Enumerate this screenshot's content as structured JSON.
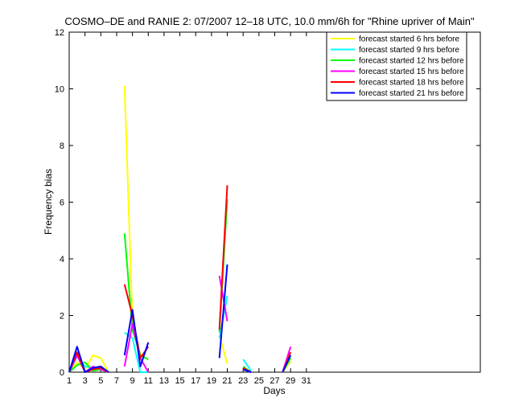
{
  "chart_data": {
    "type": "line",
    "title": "COSMO–DE and RANIE 2: 07/2007 12–18 UTC, 10.0 mm/6h for \"Rhine upriver of Main\"",
    "xlabel": "Days",
    "ylabel": "Frequency bias",
    "xlim": [
      1,
      53
    ],
    "ylim": [
      0,
      12
    ],
    "x_ticks": [
      1,
      3,
      5,
      7,
      9,
      11,
      13,
      15,
      17,
      19,
      21,
      23,
      25,
      27,
      29,
      31
    ],
    "y_ticks": [
      0,
      2,
      4,
      6,
      8,
      10,
      12
    ],
    "legend_position": "top-right",
    "series": [
      {
        "name": "forecast started 6 hrs before",
        "color": "#ffff00",
        "segments": [
          [
            [
              1,
              0
            ],
            [
              2,
              0.35
            ],
            [
              3,
              0.1
            ],
            [
              4,
              0.6
            ],
            [
              5,
              0.5
            ],
            [
              6,
              0
            ]
          ],
          [
            [
              8,
              10.1
            ],
            [
              9,
              1.9
            ],
            [
              10,
              0.6
            ]
          ],
          [
            [
              20,
              1.3
            ],
            [
              21,
              0.3
            ]
          ],
          [
            [
              23,
              0.1
            ],
            [
              24,
              0
            ]
          ],
          [
            [
              28,
              0
            ],
            [
              29,
              0.4
            ]
          ]
        ]
      },
      {
        "name": "forecast started 9 hrs before",
        "color": "#00ffff",
        "segments": [
          [
            [
              1,
              0
            ],
            [
              2,
              0.55
            ],
            [
              3,
              0.2
            ],
            [
              4,
              0.15
            ],
            [
              5,
              0.2
            ],
            [
              6,
              0
            ]
          ],
          [
            [
              8,
              1.4
            ],
            [
              9,
              1.2
            ],
            [
              10,
              0
            ],
            [
              11,
              0
            ]
          ],
          [
            [
              20,
              1.2
            ],
            [
              21,
              2.7
            ]
          ],
          [
            [
              23,
              0.45
            ],
            [
              24,
              0.05
            ]
          ],
          [
            [
              28,
              0
            ],
            [
              29,
              0.6
            ]
          ]
        ]
      },
      {
        "name": "forecast started 12 hrs before",
        "color": "#00ff00",
        "segments": [
          [
            [
              1,
              0
            ],
            [
              2,
              0.25
            ],
            [
              3,
              0.35
            ],
            [
              4,
              0.05
            ],
            [
              5,
              0.1
            ],
            [
              6,
              0
            ]
          ],
          [
            [
              8,
              4.9
            ],
            [
              9,
              1.5
            ],
            [
              10,
              0.6
            ],
            [
              11,
              0.45
            ]
          ],
          [
            [
              20,
              1.4
            ],
            [
              21,
              6.1
            ]
          ],
          [
            [
              23,
              0.2
            ],
            [
              24,
              0
            ]
          ],
          [
            [
              28,
              0
            ],
            [
              29,
              0.5
            ]
          ]
        ]
      },
      {
        "name": "forecast started 15 hrs before",
        "color": "#ff00ff",
        "segments": [
          [
            [
              1,
              0
            ],
            [
              2,
              0.6
            ],
            [
              3,
              0
            ],
            [
              4,
              0.2
            ],
            [
              5,
              0.1
            ],
            [
              6,
              0
            ]
          ],
          [
            [
              8,
              0.2
            ],
            [
              9,
              1.7
            ],
            [
              10,
              0.5
            ],
            [
              11,
              0
            ]
          ],
          [
            [
              20,
              3.4
            ],
            [
              21,
              1.8
            ]
          ],
          [
            [
              23,
              0.1
            ],
            [
              24,
              0
            ]
          ],
          [
            [
              28,
              0
            ],
            [
              29,
              0.9
            ]
          ]
        ]
      },
      {
        "name": "forecast started 18 hrs before",
        "color": "#ff0000",
        "segments": [
          [
            [
              1,
              0
            ],
            [
              2,
              0.7
            ],
            [
              3,
              0
            ],
            [
              4,
              0.1
            ],
            [
              5,
              0.15
            ],
            [
              6,
              0
            ]
          ],
          [
            [
              8,
              3.1
            ],
            [
              9,
              2.0
            ],
            [
              10,
              0.5
            ],
            [
              11,
              0.9
            ]
          ],
          [
            [
              20,
              1.5
            ],
            [
              21,
              6.6
            ]
          ],
          [
            [
              23,
              0.15
            ],
            [
              24,
              0
            ]
          ],
          [
            [
              28,
              0
            ],
            [
              29,
              0.7
            ]
          ]
        ]
      },
      {
        "name": "forecast started 21 hrs before",
        "color": "#0000ff",
        "segments": [
          [
            [
              1,
              0
            ],
            [
              2,
              0.9
            ],
            [
              3,
              0
            ],
            [
              4,
              0.15
            ],
            [
              5,
              0.2
            ],
            [
              6,
              0
            ]
          ],
          [
            [
              8,
              0.6
            ],
            [
              9,
              2.2
            ],
            [
              10,
              0.2
            ],
            [
              11,
              1.05
            ]
          ],
          [
            [
              20,
              0.5
            ],
            [
              21,
              3.8
            ]
          ],
          [
            [
              23,
              0.1
            ],
            [
              24,
              0
            ]
          ],
          [
            [
              28,
              0
            ],
            [
              29,
              0.6
            ]
          ]
        ]
      }
    ]
  }
}
